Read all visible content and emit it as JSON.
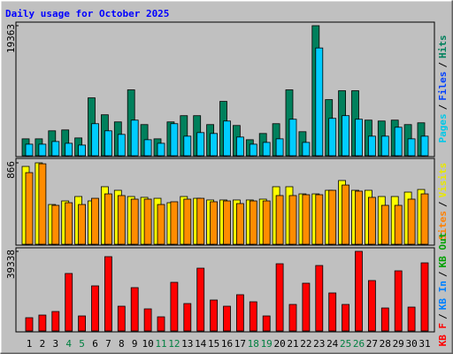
{
  "title": "Daily usage for October 2025",
  "categories": [
    "1",
    "2",
    "3",
    "4",
    "5",
    "6",
    "7",
    "8",
    "9",
    "10",
    "11",
    "12",
    "13",
    "14",
    "15",
    "16",
    "17",
    "18",
    "19",
    "20",
    "21",
    "22",
    "23",
    "24",
    "25",
    "26",
    "27",
    "28",
    "29",
    "30",
    "31"
  ],
  "category_colors": [
    "#000000",
    "#000000",
    "#000000",
    "#008040",
    "#008040",
    "#000000",
    "#000000",
    "#000000",
    "#000000",
    "#000000",
    "#008040",
    "#008040",
    "#000000",
    "#000000",
    "#000000",
    "#000000",
    "#000000",
    "#008040",
    "#008040",
    "#000000",
    "#000000",
    "#000000",
    "#000000",
    "#000000",
    "#008040",
    "#008040",
    "#000000",
    "#000000",
    "#000000",
    "#000000",
    "#000000"
  ],
  "legend_separator": "/",
  "chart_data": [
    {
      "type": "bar",
      "ylim": [
        0,
        19363
      ],
      "yticks": [
        19363
      ],
      "legend": [
        {
          "name": "Pages",
          "color": "#00c8e8"
        },
        {
          "name": "Files",
          "color": "#0040ff"
        },
        {
          "name": "Hits",
          "color": "#00805c"
        }
      ],
      "series": [
        {
          "color": "#00805c",
          "values": [
            2519,
            2519,
            3713,
            3845,
            2652,
            8619,
            6100,
            5039,
            9812,
            4641,
            2519,
            5039,
            5967,
            5967,
            4641,
            8089,
            4508,
            2387,
            3315,
            4774,
            9812,
            3580,
            19363,
            8354,
            9680,
            9680,
            5304,
            5171,
            5304,
            4641,
            4906
          ]
        },
        {
          "color": "#00ccff",
          "values": [
            1724,
            1724,
            2122,
            1856,
            1591,
            4774,
            3713,
            3182,
            5304,
            2387,
            1856,
            4774,
            2917,
            3448,
            3315,
            5171,
            2785,
            1724,
            1989,
            2519,
            5437,
            1989,
            16045,
            5569,
            5967,
            5437,
            2917,
            2917,
            4243,
            2519,
            2917
          ]
        }
      ]
    },
    {
      "type": "bar",
      "ylim": [
        0,
        866
      ],
      "yticks": [
        866
      ],
      "legend": [
        {
          "name": "Sites",
          "color": "#ff8000"
        },
        {
          "name": "Visits",
          "color": "#e8e800"
        }
      ],
      "series": [
        {
          "color": "#ffff00",
          "values": [
            828,
            866,
            423,
            461,
            508,
            461,
            612,
            574,
            508,
            499,
            489,
            442,
            508,
            489,
            471,
            471,
            471,
            471,
            480,
            612,
            612,
            536,
            536,
            574,
            678,
            574,
            574,
            508,
            508,
            555,
            583
          ]
        },
        {
          "color": "#ff8c00",
          "values": [
            762,
            856,
            414,
            442,
            423,
            489,
            536,
            518,
            480,
            480,
            423,
            452,
            480,
            489,
            452,
            461,
            433,
            461,
            461,
            518,
            518,
            527,
            527,
            574,
            630,
            565,
            499,
            414,
            414,
            480,
            536
          ]
        }
      ]
    },
    {
      "type": "bar",
      "ylim": [
        0,
        39338
      ],
      "yticks": [
        39338
      ],
      "legend": [
        {
          "name": "KB F",
          "color": "#ff0000"
        },
        {
          "name": "KB In",
          "color": "#0080ff"
        },
        {
          "name": "KB Out",
          "color": "#00a000"
        }
      ],
      "series": [
        {
          "color": "#ff0000",
          "values": [
            6556,
            7867,
            9615,
            28405,
            7429,
            22287,
            36708,
            12236,
            21413,
            10925,
            6992,
            24035,
            13547,
            31027,
            15295,
            12236,
            17917,
            14421,
            7429,
            33212,
            13110,
            23598,
            32338,
            18791,
            13110,
            39338,
            24909,
            11362,
            29716,
            11799,
            33649
          ]
        }
      ]
    }
  ]
}
